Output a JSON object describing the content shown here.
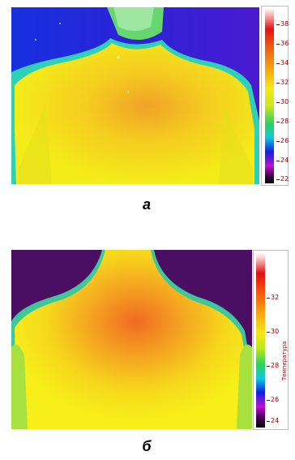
{
  "panel_a": {
    "caption": "а",
    "scale_ticks": [
      "38",
      "36",
      "34",
      "32",
      "30",
      "28",
      "26",
      "24",
      "22"
    ],
    "tick_color": "#a00000",
    "colors": {
      "background": "#2a1fd8",
      "body": "#f4e81a",
      "hotspot": "#f09a22",
      "hair": "#5fd86a"
    }
  },
  "panel_b": {
    "caption": "б",
    "scale_ticks": [
      "32",
      "30",
      "28",
      "26",
      "24"
    ],
    "unit_label": "Температура",
    "tick_color": "#a00000",
    "colors": {
      "background": "#4a0f63",
      "body": "#f7ea1a",
      "hotspot": "#f06a22",
      "edge": "#4fd0a0"
    }
  }
}
